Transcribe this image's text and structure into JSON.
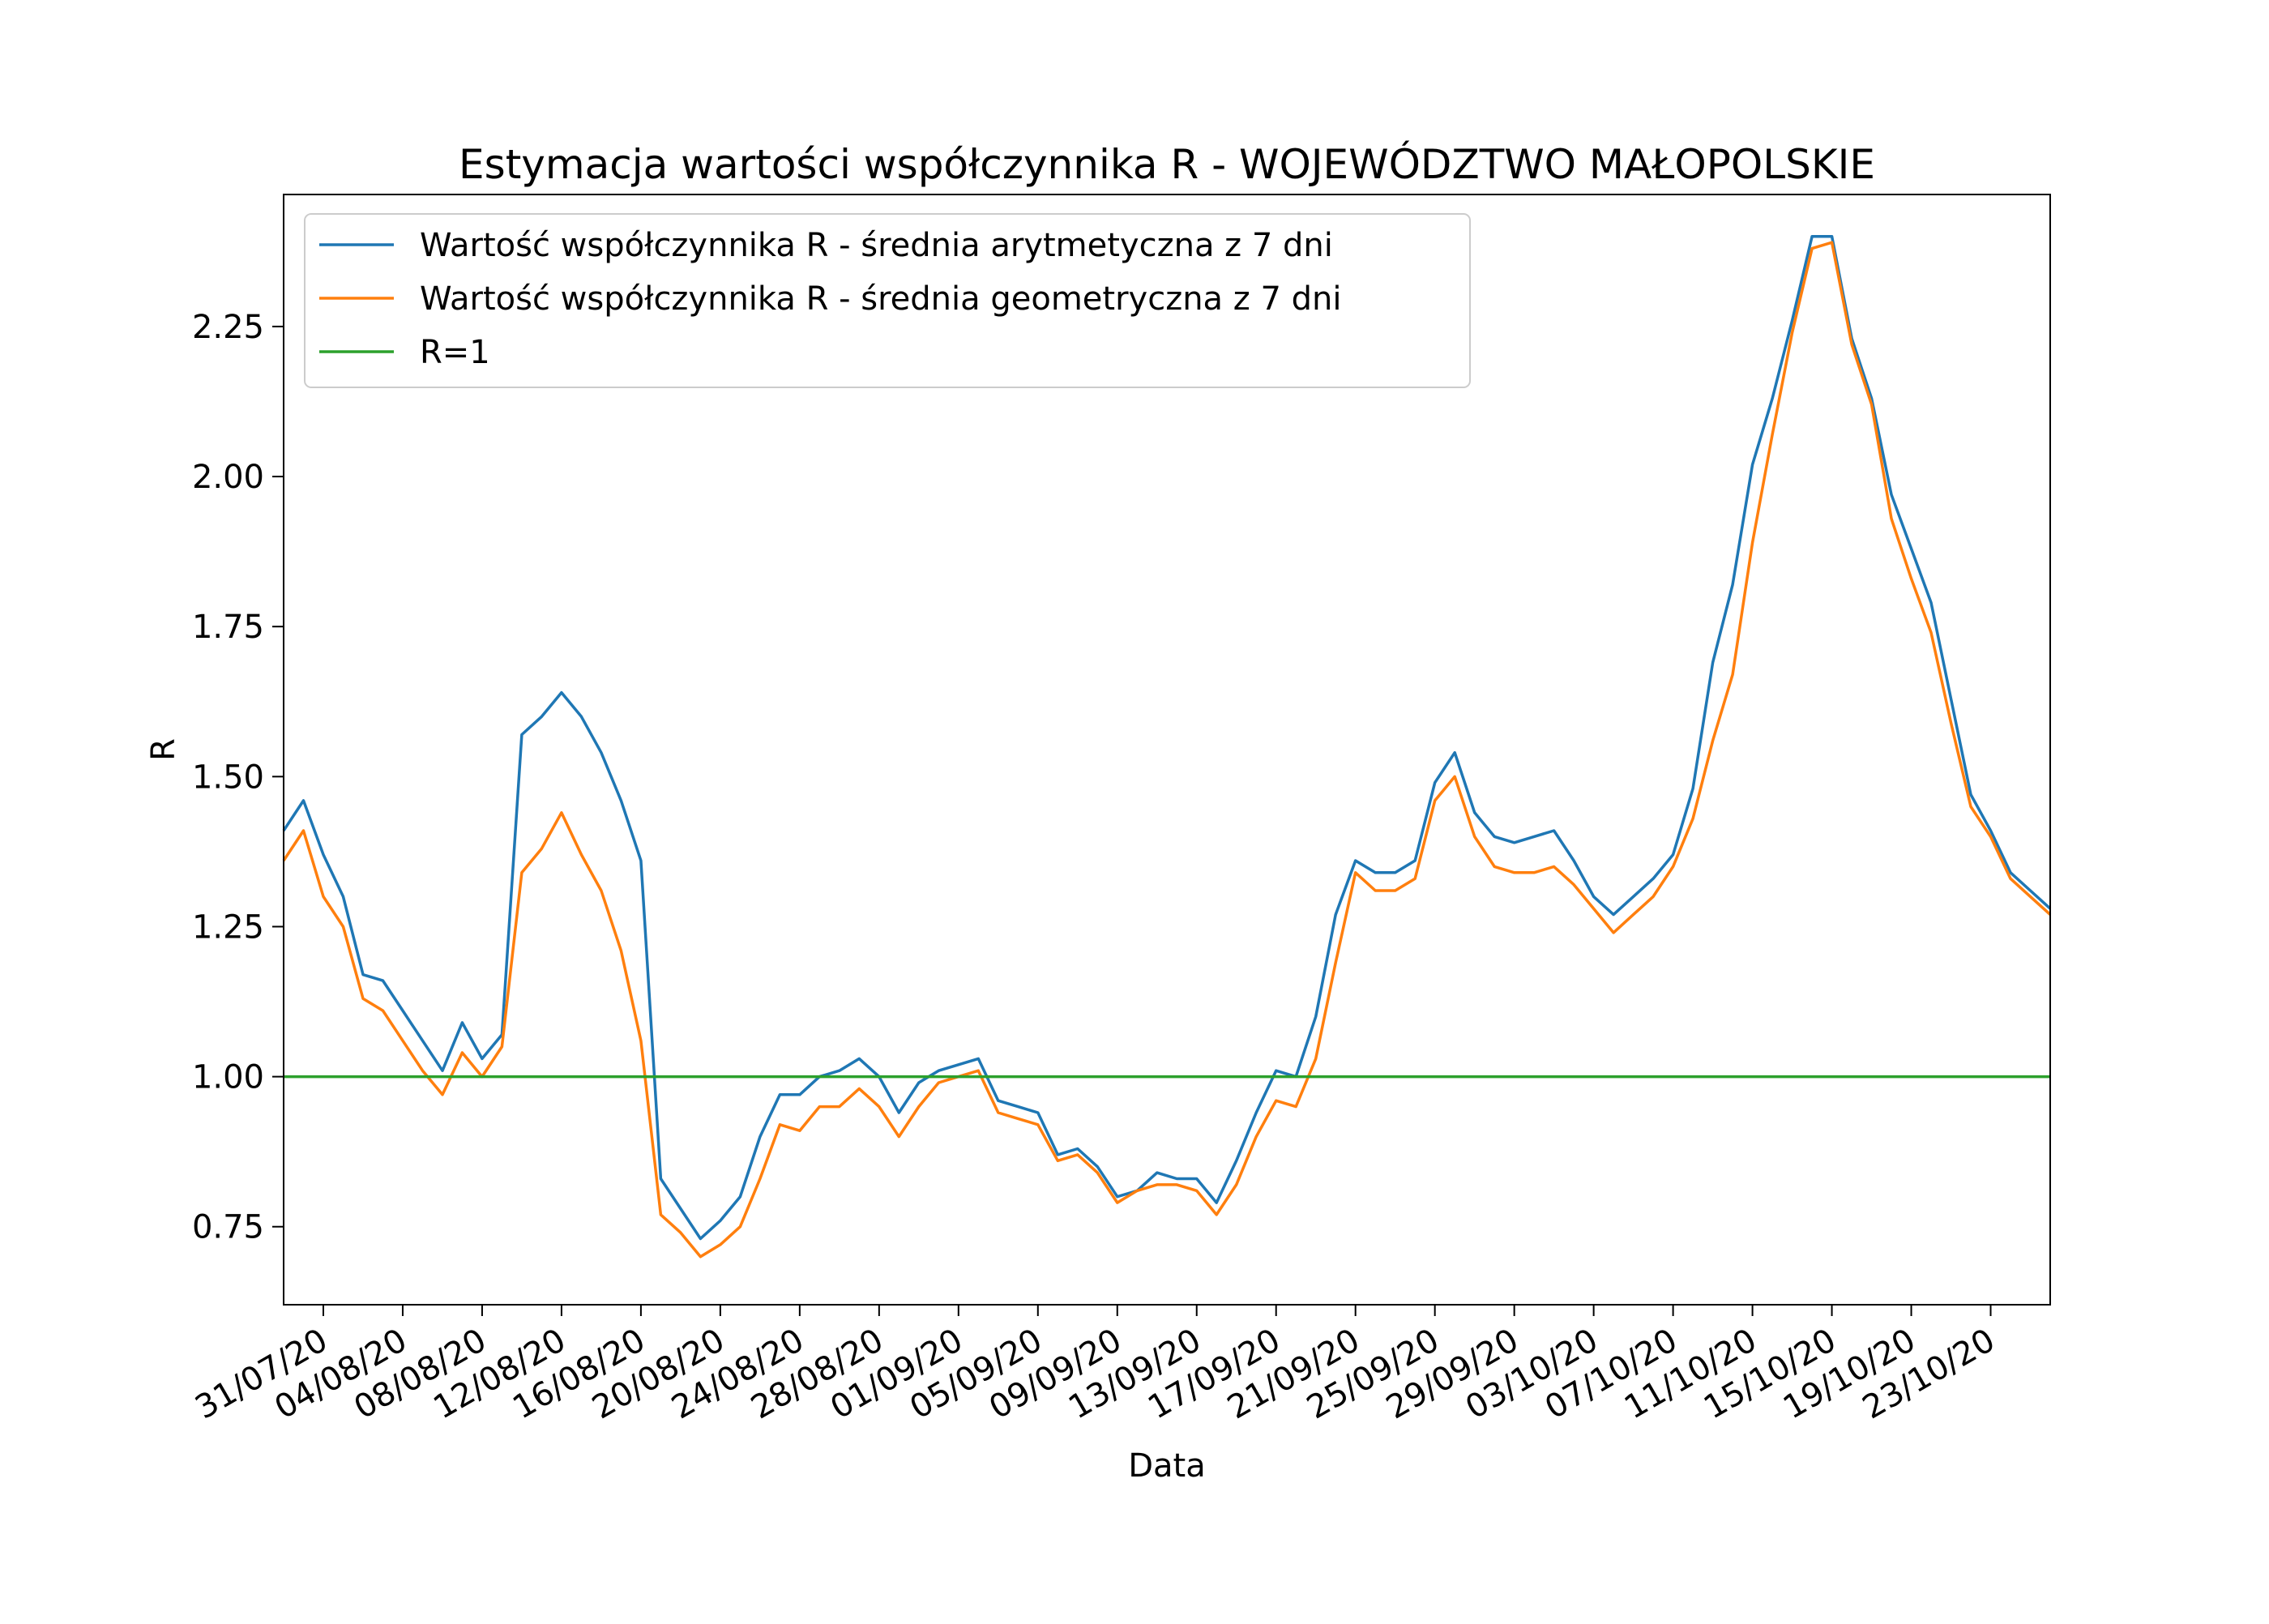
{
  "chart_data": {
    "type": "line",
    "title": "Estymacja wartości współczynnika R - WOJEWÓDZTWO MAŁOPOLSKIE",
    "xlabel": "Data",
    "ylabel": "R",
    "x_axis": {
      "type": "date",
      "range": [
        "2020-07-29",
        "2020-10-26"
      ],
      "tick_dates": [
        "2020-07-31",
        "2020-08-04",
        "2020-08-08",
        "2020-08-12",
        "2020-08-16",
        "2020-08-20",
        "2020-08-24",
        "2020-08-28",
        "2020-09-01",
        "2020-09-05",
        "2020-09-09",
        "2020-09-13",
        "2020-09-17",
        "2020-09-21",
        "2020-09-25",
        "2020-09-29",
        "2020-10-03",
        "2020-10-07",
        "2020-10-11",
        "2020-10-15",
        "2020-10-19",
        "2020-10-23"
      ],
      "tick_labels": [
        "31/07/20",
        "04/08/20",
        "08/08/20",
        "12/08/20",
        "16/08/20",
        "20/08/20",
        "24/08/20",
        "28/08/20",
        "01/09/20",
        "05/09/20",
        "09/09/20",
        "13/09/20",
        "17/09/20",
        "21/09/20",
        "25/09/20",
        "29/09/20",
        "03/10/20",
        "07/10/20",
        "11/10/20",
        "15/10/20",
        "19/10/20",
        "23/10/20"
      ]
    },
    "y_axis": {
      "range": [
        0.62,
        2.47
      ],
      "ticks": [
        0.75,
        1.0,
        1.25,
        1.5,
        1.75,
        2.0,
        2.25
      ],
      "tick_labels": [
        "0.75",
        "1.00",
        "1.25",
        "1.50",
        "1.75",
        "2.00",
        "2.25"
      ]
    },
    "grid": false,
    "legend_position": "top-left",
    "x": [
      "2020-07-29",
      "2020-07-30",
      "2020-07-31",
      "2020-08-01",
      "2020-08-02",
      "2020-08-03",
      "2020-08-04",
      "2020-08-05",
      "2020-08-06",
      "2020-08-07",
      "2020-08-08",
      "2020-08-09",
      "2020-08-10",
      "2020-08-11",
      "2020-08-12",
      "2020-08-13",
      "2020-08-14",
      "2020-08-15",
      "2020-08-16",
      "2020-08-17",
      "2020-08-18",
      "2020-08-19",
      "2020-08-20",
      "2020-08-21",
      "2020-08-22",
      "2020-08-23",
      "2020-08-24",
      "2020-08-25",
      "2020-08-26",
      "2020-08-27",
      "2020-08-28",
      "2020-08-29",
      "2020-08-30",
      "2020-08-31",
      "2020-09-01",
      "2020-09-02",
      "2020-09-03",
      "2020-09-04",
      "2020-09-05",
      "2020-09-06",
      "2020-09-07",
      "2020-09-08",
      "2020-09-09",
      "2020-09-10",
      "2020-09-11",
      "2020-09-12",
      "2020-09-13",
      "2020-09-14",
      "2020-09-15",
      "2020-09-16",
      "2020-09-17",
      "2020-09-18",
      "2020-09-19",
      "2020-09-20",
      "2020-09-21",
      "2020-09-22",
      "2020-09-23",
      "2020-09-24",
      "2020-09-25",
      "2020-09-26",
      "2020-09-27",
      "2020-09-28",
      "2020-09-29",
      "2020-09-30",
      "2020-10-01",
      "2020-10-02",
      "2020-10-03",
      "2020-10-04",
      "2020-10-05",
      "2020-10-06",
      "2020-10-07",
      "2020-10-08",
      "2020-10-09",
      "2020-10-10",
      "2020-10-11",
      "2020-10-12",
      "2020-10-13",
      "2020-10-14",
      "2020-10-15",
      "2020-10-16",
      "2020-10-17",
      "2020-10-18",
      "2020-10-19",
      "2020-10-20",
      "2020-10-21",
      "2020-10-22",
      "2020-10-23",
      "2020-10-24",
      "2020-10-25",
      "2020-10-26"
    ],
    "series": [
      {
        "name": "Wartość współczynnika R - średnia arytmetyczna z 7 dni",
        "color": "#1f77b4",
        "values": [
          1.41,
          1.46,
          1.37,
          1.3,
          1.17,
          1.16,
          1.11,
          1.06,
          1.01,
          1.09,
          1.03,
          1.07,
          1.57,
          1.6,
          1.64,
          1.6,
          1.54,
          1.46,
          1.36,
          0.83,
          0.78,
          0.73,
          0.76,
          0.8,
          0.9,
          0.97,
          0.97,
          1.0,
          1.01,
          1.03,
          1.0,
          0.94,
          0.99,
          1.01,
          1.02,
          1.03,
          0.96,
          0.95,
          0.94,
          0.87,
          0.88,
          0.85,
          0.8,
          0.81,
          0.84,
          0.83,
          0.83,
          0.79,
          0.86,
          0.94,
          1.01,
          1.0,
          1.1,
          1.27,
          1.36,
          1.34,
          1.34,
          1.36,
          1.49,
          1.54,
          1.44,
          1.4,
          1.39,
          1.4,
          1.41,
          1.36,
          1.3,
          1.27,
          1.3,
          1.33,
          1.37,
          1.48,
          1.69,
          1.82,
          2.02,
          2.13,
          2.26,
          2.4,
          2.4,
          2.23,
          2.13,
          1.97,
          1.88,
          1.79,
          1.63,
          1.47,
          1.41,
          1.34,
          1.31,
          1.28
        ]
      },
      {
        "name": "Wartość współczynnika R - średnia geometryczna z 7 dni",
        "color": "#ff7f0e",
        "values": [
          1.36,
          1.41,
          1.3,
          1.25,
          1.13,
          1.11,
          1.06,
          1.01,
          0.97,
          1.04,
          1.0,
          1.05,
          1.34,
          1.38,
          1.44,
          1.37,
          1.31,
          1.21,
          1.06,
          0.77,
          0.74,
          0.7,
          0.72,
          0.75,
          0.83,
          0.92,
          0.91,
          0.95,
          0.95,
          0.98,
          0.95,
          0.9,
          0.95,
          0.99,
          1.0,
          1.01,
          0.94,
          0.93,
          0.92,
          0.86,
          0.87,
          0.84,
          0.79,
          0.81,
          0.82,
          0.82,
          0.81,
          0.77,
          0.82,
          0.9,
          0.96,
          0.95,
          1.03,
          1.19,
          1.34,
          1.31,
          1.31,
          1.33,
          1.46,
          1.5,
          1.4,
          1.35,
          1.34,
          1.34,
          1.35,
          1.32,
          1.28,
          1.24,
          1.27,
          1.3,
          1.35,
          1.43,
          1.56,
          1.67,
          1.89,
          2.07,
          2.24,
          2.38,
          2.39,
          2.22,
          2.12,
          1.93,
          1.83,
          1.74,
          1.59,
          1.45,
          1.4,
          1.33,
          1.3,
          1.27
        ]
      },
      {
        "name": "R=1",
        "color": "#2ca02c",
        "values": [
          1,
          1,
          1,
          1,
          1,
          1,
          1,
          1,
          1,
          1,
          1,
          1,
          1,
          1,
          1,
          1,
          1,
          1,
          1,
          1,
          1,
          1,
          1,
          1,
          1,
          1,
          1,
          1,
          1,
          1,
          1,
          1,
          1,
          1,
          1,
          1,
          1,
          1,
          1,
          1,
          1,
          1,
          1,
          1,
          1,
          1,
          1,
          1,
          1,
          1,
          1,
          1,
          1,
          1,
          1,
          1,
          1,
          1,
          1,
          1,
          1,
          1,
          1,
          1,
          1,
          1,
          1,
          1,
          1,
          1,
          1,
          1,
          1,
          1,
          1,
          1,
          1,
          1,
          1,
          1,
          1,
          1,
          1,
          1,
          1,
          1,
          1,
          1,
          1,
          1
        ]
      }
    ]
  }
}
